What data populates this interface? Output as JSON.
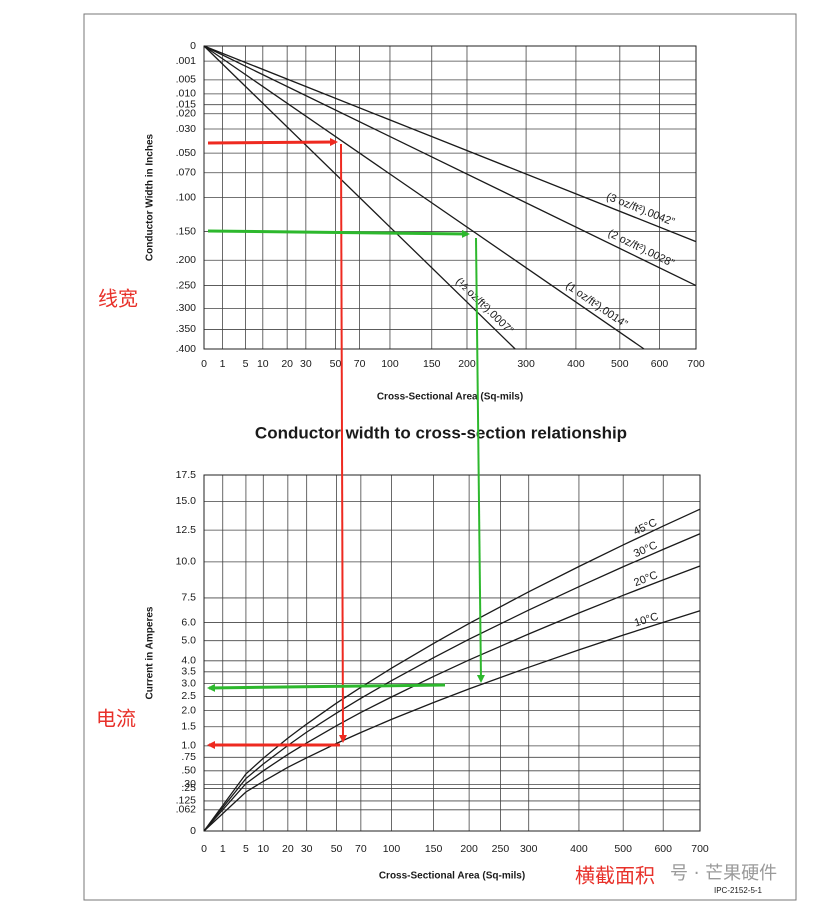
{
  "chart_data": [
    {
      "type": "line",
      "title": "Conductor width to cross-section relationship",
      "xlabel": "Cross-Sectional Area (Sq-mils)",
      "ylabel": "Conductor Width in Inches",
      "xscale": "sqrt",
      "yscale": "sqrt",
      "y_reversed": true,
      "grid": true,
      "xlim": [
        0,
        700
      ],
      "ylim": [
        0,
        0.4
      ],
      "xticks": [
        0,
        1,
        5,
        10,
        20,
        30,
        50,
        70,
        100,
        150,
        200,
        300,
        400,
        500,
        600,
        700
      ],
      "yticks": [
        0,
        {
          "value": 0.001,
          "label": ".001"
        },
        {
          "value": 0.005,
          "label": ".005"
        },
        {
          "value": 0.01,
          "label": ".010"
        },
        {
          "value": 0.015,
          "label": ".015"
        },
        {
          "value": 0.02,
          "label": ".020"
        },
        {
          "value": 0.03,
          "label": ".030"
        },
        {
          "value": 0.05,
          "label": ".050"
        },
        {
          "value": 0.07,
          "label": ".070"
        },
        {
          "value": 0.1,
          "label": ".100"
        },
        {
          "value": 0.15,
          "label": ".150"
        },
        {
          "value": 0.2,
          "label": ".200"
        },
        {
          "value": 0.25,
          "label": ".250"
        },
        {
          "value": 0.3,
          "label": ".300"
        },
        {
          "value": 0.35,
          "label": ".350"
        },
        {
          "value": 0.4,
          "label": ".400"
        }
      ],
      "series": [
        {
          "name": "(3 oz/ft²).0042”",
          "color": "#1a1a1a",
          "x": [
            0,
            700
          ],
          "values": [
            0,
            0.1667
          ]
        },
        {
          "name": "(2 oz/ft²).0028”",
          "color": "#1a1a1a",
          "x": [
            0,
            700
          ],
          "values": [
            0,
            0.25
          ]
        },
        {
          "name": "(1 oz/ft²).0014”",
          "color": "#1a1a1a",
          "x": [
            0,
            560
          ],
          "values": [
            0,
            0.4
          ]
        },
        {
          "name": "(½ oz/ft²).0007”",
          "color": "#1a1a1a",
          "x": [
            0,
            280
          ],
          "values": [
            0,
            0.4
          ]
        }
      ]
    },
    {
      "type": "line",
      "xlabel": "Cross-Sectional Area (Sq-mils)",
      "ylabel": "Current in Amperes",
      "xscale": "sqrt",
      "yscale": "sqrt",
      "grid": true,
      "xlim": [
        0,
        700
      ],
      "ylim": [
        0,
        17.5
      ],
      "xticks": [
        0,
        1,
        5,
        10,
        20,
        30,
        50,
        70,
        100,
        150,
        200,
        250,
        300,
        400,
        500,
        600,
        700
      ],
      "yticks": [
        0,
        {
          "value": 0.062,
          "label": ".062"
        },
        {
          "value": 0.125,
          "label": ".125"
        },
        {
          "value": 0.25,
          "label": ".25"
        },
        {
          "value": 0.3,
          "label": ".30"
        },
        {
          "value": 0.5,
          "label": ".50"
        },
        {
          "value": 0.75,
          "label": ".75"
        },
        {
          "value": 1,
          "label": "1.0"
        },
        1.5,
        {
          "value": 2,
          "label": "2.0"
        },
        2.5,
        {
          "value": 3,
          "label": "3.0"
        },
        3.5,
        {
          "value": 4,
          "label": "4.0"
        },
        {
          "value": 5,
          "label": "5.0"
        },
        {
          "value": 6,
          "label": "6.0"
        },
        7.5,
        {
          "value": 10,
          "label": "10.0"
        },
        12.5,
        {
          "value": 15,
          "label": "15.0"
        },
        17.5
      ],
      "series": [
        {
          "name": "45°C",
          "color": "#1a1a1a",
          "x": [
            0,
            5,
            10,
            20,
            30,
            50,
            70,
            100,
            150,
            200,
            300,
            400,
            500,
            600,
            700
          ],
          "values": [
            0,
            0.45,
            0.73,
            1.19,
            1.58,
            2.26,
            2.85,
            3.66,
            4.86,
            5.95,
            7.9,
            9.66,
            11.3,
            12.84,
            14.3
          ]
        },
        {
          "name": "30°C",
          "color": "#1a1a1a",
          "x": [
            0,
            5,
            10,
            20,
            30,
            50,
            70,
            100,
            150,
            200,
            300,
            400,
            500,
            600,
            700
          ],
          "values": [
            0,
            0.38,
            0.62,
            1.01,
            1.35,
            1.92,
            2.43,
            3.12,
            4.15,
            5.08,
            6.74,
            8.24,
            9.64,
            10.95,
            12.2
          ]
        },
        {
          "name": "20°C",
          "color": "#1a1a1a",
          "x": [
            0,
            5,
            10,
            20,
            30,
            50,
            70,
            100,
            150,
            200,
            300,
            400,
            500,
            600,
            700
          ],
          "values": [
            0,
            0.31,
            0.5,
            0.81,
            1.07,
            1.53,
            1.94,
            2.48,
            3.3,
            4.04,
            5.36,
            6.56,
            7.67,
            8.71,
            9.7
          ]
        },
        {
          "name": "10°C",
          "color": "#1a1a1a",
          "x": [
            0,
            5,
            10,
            20,
            30,
            50,
            70,
            100,
            150,
            200,
            300,
            400,
            500,
            600,
            700
          ],
          "values": [
            0,
            0.21,
            0.34,
            0.56,
            0.74,
            1.06,
            1.34,
            1.72,
            2.28,
            2.79,
            3.7,
            4.53,
            5.3,
            6.01,
            6.7
          ]
        }
      ]
    }
  ],
  "annotations": {
    "width": "线宽",
    "current": "电流",
    "area": "横截面积",
    "watermark": "号 · 芒果硬件",
    "figure_id": "IPC-2152-5-1"
  }
}
